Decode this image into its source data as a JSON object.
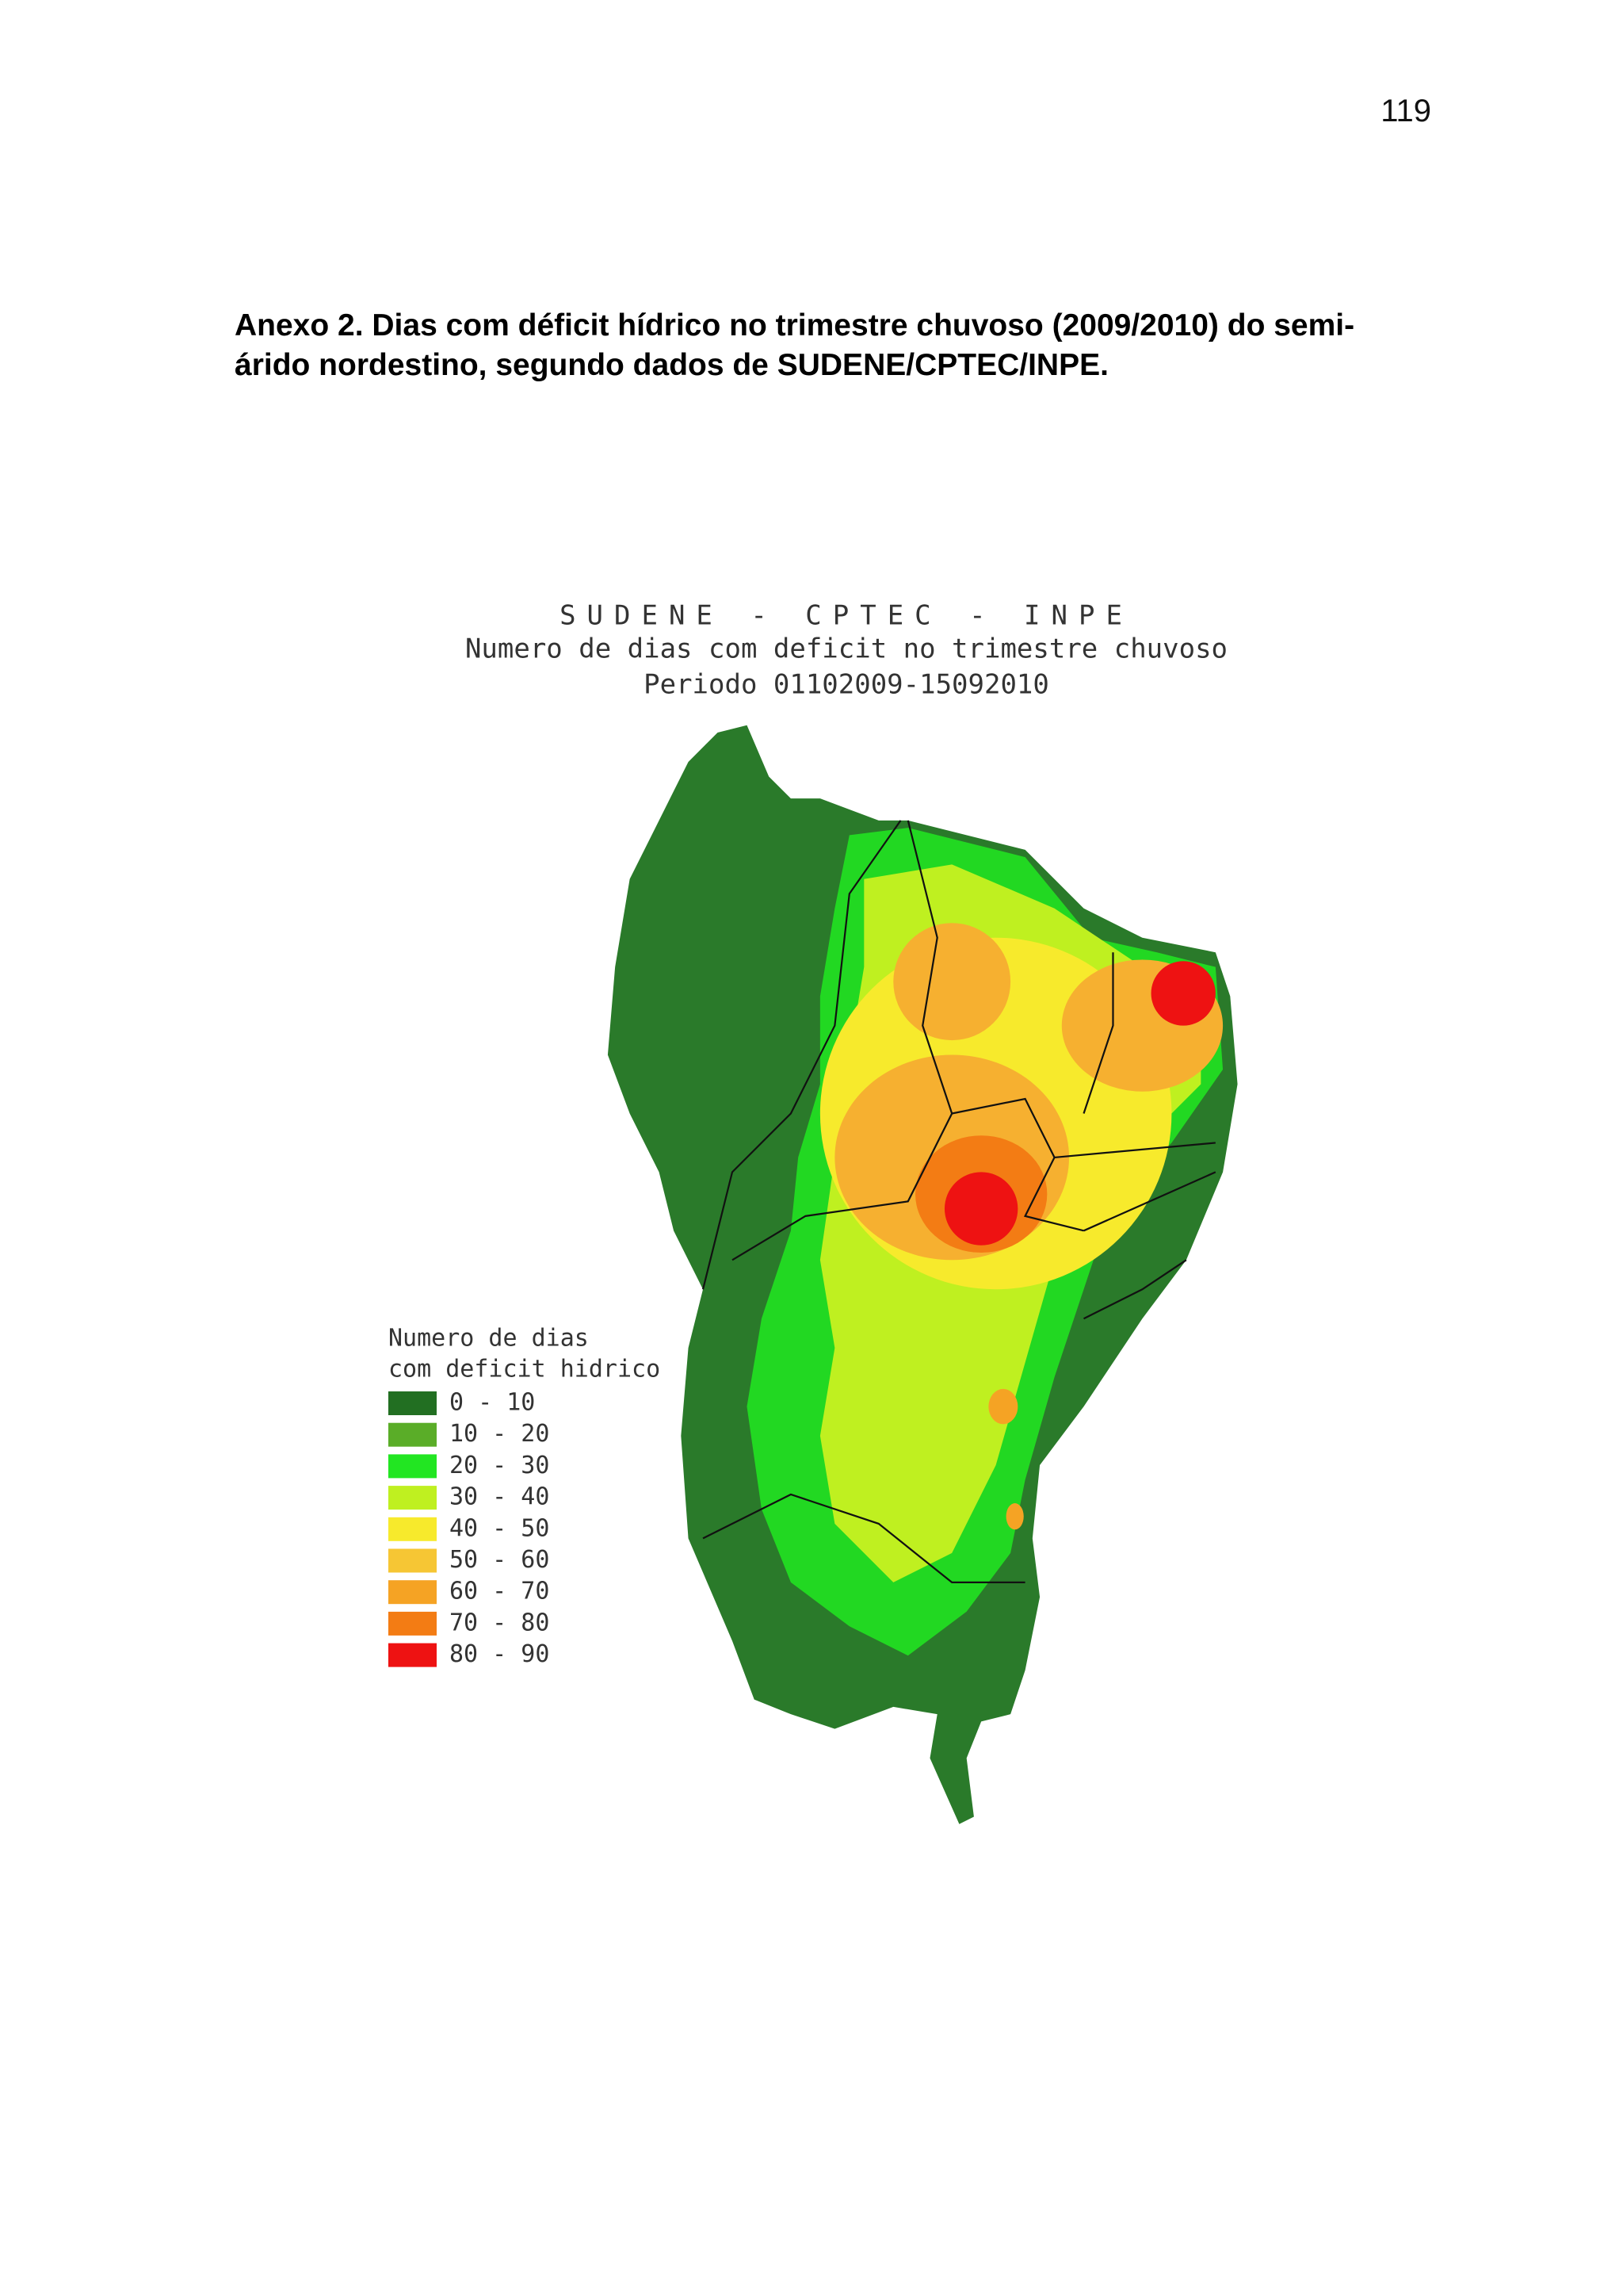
{
  "page_number": "119",
  "caption": {
    "lines": [
      "Anexo 2. Dias com déficit hídrico no trimestre chuvoso (2009/2010) do semi-",
      "árido nordestino, segundo dados de SUDENE/CPTEC/INPE."
    ]
  },
  "map": {
    "title_lines": [
      "SUDENE - CPTEC - INPE",
      "Numero de dias com deficit no trimestre chuvoso",
      "Periodo 01102009-15092010"
    ],
    "legend": {
      "title_lines": [
        "Numero de dias",
        "com deficit hidrico"
      ],
      "items": [
        {
          "label": "0 - 10",
          "color": "#226f22"
        },
        {
          "label": "10 - 20",
          "color": "#5aad28"
        },
        {
          "label": "20 - 30",
          "color": "#22e622"
        },
        {
          "label": "30 - 40",
          "color": "#bff020"
        },
        {
          "label": "40 - 50",
          "color": "#f7ea2c"
        },
        {
          "label": "50 - 60",
          "color": "#f6c634"
        },
        {
          "label": "60 - 70",
          "color": "#f5a324"
        },
        {
          "label": "70 - 80",
          "color": "#f37c14"
        },
        {
          "label": "80 - 90",
          "color": "#ee1212"
        }
      ]
    }
  }
}
